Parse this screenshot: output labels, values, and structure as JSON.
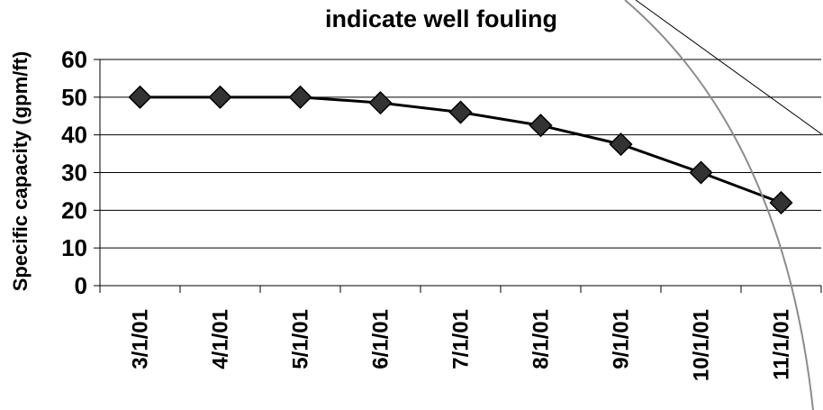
{
  "chart_data": {
    "type": "line",
    "title": "indicate well fouling",
    "xlabel": "",
    "ylabel": "Specific capacity (gpm/ft)",
    "categories": [
      "3/1/01",
      "4/1/01",
      "5/1/01",
      "6/1/01",
      "7/1/01",
      "8/1/01",
      "9/1/01",
      "10/1/01",
      "11/1/01"
    ],
    "series": [
      {
        "values": [
          50,
          50,
          50,
          48.5,
          46,
          42.5,
          37.5,
          30,
          22
        ]
      }
    ],
    "ylim": [
      0,
      60
    ],
    "yticks": [
      "0",
      "10",
      "20",
      "30",
      "40",
      "50",
      "60"
    ],
    "grid": true,
    "legend": "none",
    "colors": {
      "line": "#000000",
      "marker": "#333333",
      "grid": "#000000",
      "callout": "#8c8c8c"
    }
  }
}
